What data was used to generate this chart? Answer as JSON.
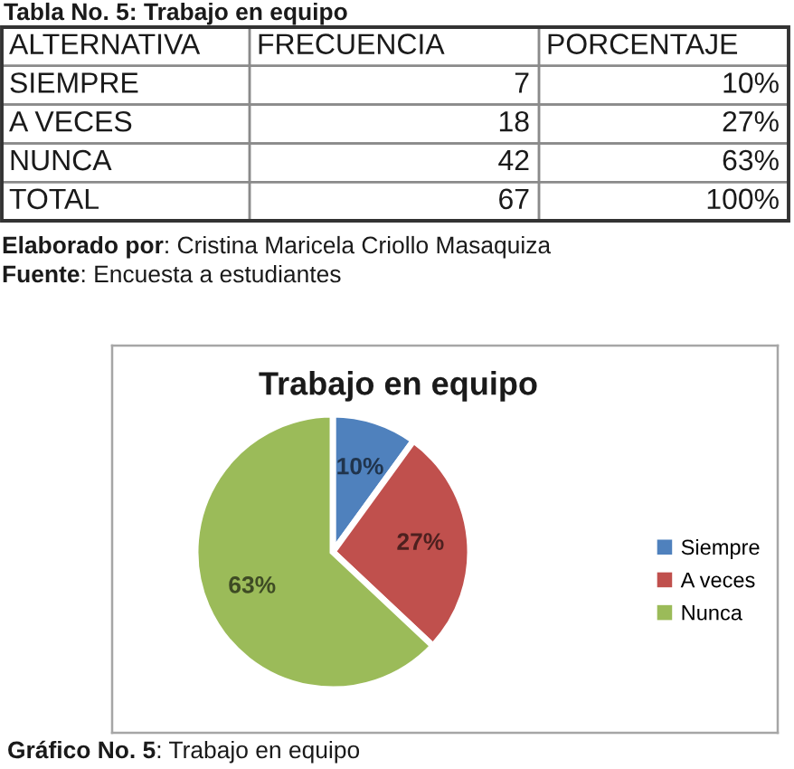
{
  "chart_data": [
    {
      "type": "other",
      "title": "Tabla No. 5: Trabajo en equipo",
      "xlabel": "ALTERNATIVA",
      "categories": [
        "SIEMPRE",
        "A VECES",
        "NUNCA",
        "TOTAL"
      ],
      "series": [
        {
          "name": "FRECUENCIA",
          "values": [
            7,
            18,
            42,
            67
          ]
        },
        {
          "name": "PORCENTAJE",
          "values": [
            10,
            27,
            63,
            100
          ],
          "value_labels": [
            "10%",
            "27%",
            "63%",
            "100%"
          ]
        }
      ],
      "data_labels": true,
      "annotations": [
        "Elaborado por: Cristina Maricela Criollo Masaquiza",
        "Fuente: Encuesta a estudiantes"
      ]
    },
    {
      "type": "pie",
      "title": "Trabajo en equipo",
      "categories": [
        "Siempre",
        "A veces",
        "Nunca"
      ],
      "values": [
        10,
        27,
        63
      ],
      "colors": [
        "#4f81bd",
        "#c0504d",
        "#9bbb59"
      ],
      "value_labels": [
        "10%",
        "27%",
        "63%"
      ],
      "legend": "right",
      "annotations": [
        "Gráfico No. 5: Trabajo en equipo"
      ]
    }
  ]
}
